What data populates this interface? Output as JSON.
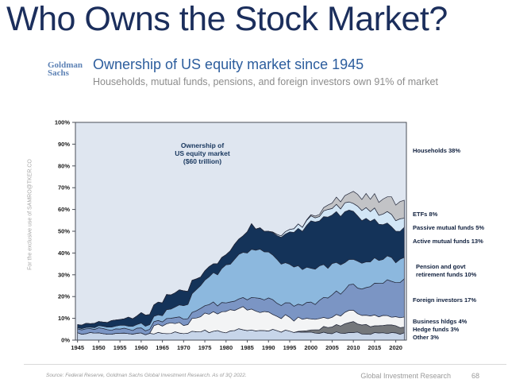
{
  "slide": {
    "title": "Who Owns the Stock Market?",
    "watermark": "For the exclusive use of SAMRO@TKER.CO",
    "footer": {
      "source": "Source: Federal Reserve, Goldman Sachs Global Investment Research. As of 3Q 2022.",
      "department": "Global Investment Research",
      "page": "68"
    }
  },
  "header": {
    "logo_line1": "Goldman",
    "logo_line2": "Sachs",
    "heading": "Ownership of US equity market since 1945",
    "subheading": "Households, mutual funds, pensions, and foreign investors own 91% of market"
  },
  "chart_data": {
    "type": "area",
    "stacked": true,
    "title": "Ownership of\nUS equity market\n($60 trillion)",
    "xlabel": "",
    "ylabel": "",
    "x_range": [
      1944.5,
      2022.5
    ],
    "ylim": [
      0,
      100
    ],
    "grid": false,
    "legend_position": "right",
    "x_ticks": [
      1945,
      1950,
      1955,
      1960,
      1965,
      1970,
      1975,
      1980,
      1985,
      1990,
      1995,
      2000,
      2005,
      2010,
      2015,
      2020
    ],
    "y_ticks": [
      "0%",
      "10%",
      "20%",
      "30%",
      "40%",
      "50%",
      "60%",
      "70%",
      "80%",
      "90%",
      "100%"
    ],
    "line_color": "#23283a",
    "plot_border_color": "#4a4e57",
    "background_series": {
      "name": "Households",
      "color": "#dfe6f0",
      "current_share": "38%"
    },
    "years": [
      1945,
      1950,
      1955,
      1960,
      1962,
      1963,
      1965,
      1968,
      1970,
      1972,
      1974,
      1976,
      1978,
      1980,
      1982,
      1984,
      1986,
      1988,
      1990,
      1992,
      1994,
      1996,
      1998,
      2000,
      2002,
      2004,
      2006,
      2008,
      2010,
      2012,
      2014,
      2016,
      2018,
      2020,
      2022
    ],
    "series": [
      {
        "name": "Other",
        "color": "#c7d5e9",
        "values": [
          3,
          3,
          3,
          3,
          3,
          3,
          3,
          3.5,
          3.5,
          3.5,
          4,
          4,
          4,
          4,
          4.5,
          5,
          5,
          4.5,
          4.5,
          4,
          4,
          3.5,
          3.5,
          3.5,
          3.5,
          3.5,
          3.5,
          3.5,
          3.5,
          3,
          3,
          3,
          3,
          3,
          3
        ]
      },
      {
        "name": "Hedge funds",
        "color": "#74777b",
        "values": [
          0,
          0,
          0,
          0,
          0,
          0,
          0,
          0,
          0,
          0,
          0,
          0,
          0,
          0,
          0,
          0,
          0,
          0,
          0,
          0,
          0,
          0,
          0.5,
          1,
          2,
          3,
          3.5,
          4.5,
          4.5,
          4,
          4,
          3.5,
          3.5,
          3,
          3
        ]
      },
      {
        "name": "Business hldgs",
        "color": "#f3f4f5",
        "values": [
          0,
          0,
          0,
          0,
          0,
          4,
          4,
          4.5,
          4.5,
          5,
          7,
          8,
          8.5,
          9,
          9.5,
          10,
          9.5,
          9,
          8,
          7,
          6.5,
          6,
          5.5,
          5,
          5,
          5,
          5,
          5,
          5,
          4.5,
          4.5,
          4,
          4,
          4,
          4
        ]
      },
      {
        "name": "Foreign investors",
        "color": "#7b95c4",
        "values": [
          2,
          2,
          2,
          2,
          2,
          2,
          2,
          2.5,
          3,
          3,
          4,
          4,
          4,
          4,
          4.5,
          5,
          5.5,
          6,
          6,
          6,
          6,
          6.5,
          7,
          7,
          8,
          9,
          10,
          11,
          12,
          13,
          14,
          15,
          16,
          16,
          17
        ]
      },
      {
        "name": "Pension and govt retirement funds",
        "color": "#8cb8de",
        "values": [
          0.5,
          1,
          1.5,
          2,
          2.5,
          2.5,
          3,
          4.5,
          6,
          8,
          11,
          12,
          14,
          17,
          19,
          21,
          23,
          22,
          21,
          20,
          19,
          18,
          17,
          16,
          15,
          14,
          13,
          13,
          12,
          11.5,
          11,
          11,
          10.5,
          10,
          10
        ]
      },
      {
        "name": "Active mutual funds",
        "color": "#143359",
        "values": [
          1.5,
          2,
          3,
          4.5,
          5,
          5,
          6,
          7,
          6,
          5.5,
          4,
          4.5,
          4.5,
          5,
          6,
          8,
          11,
          10,
          10,
          11,
          13,
          15,
          18,
          22,
          21,
          23,
          23,
          23,
          22,
          20,
          19,
          17,
          15,
          14,
          13
        ]
      },
      {
        "name": "Passive mutual funds",
        "color": "#d2e6f6",
        "values": [
          0,
          0,
          0,
          0,
          0,
          0,
          0,
          0,
          0,
          0,
          0,
          0,
          0,
          0,
          0,
          0,
          0,
          0,
          0,
          0.5,
          1,
          1.5,
          2,
          2,
          2.5,
          3,
          3,
          3.5,
          4,
          4,
          4.5,
          5,
          5,
          5,
          5
        ]
      },
      {
        "name": "ETFs",
        "color": "#c2c3c6",
        "values": [
          0,
          0,
          0,
          0,
          0,
          0,
          0,
          0,
          0,
          0,
          0,
          0,
          0,
          0,
          0,
          0,
          0,
          0,
          0,
          0,
          0,
          0,
          0,
          0.5,
          1,
          2,
          3,
          4,
          5,
          5.5,
          6,
          6.5,
          7,
          7.5,
          8
        ]
      }
    ],
    "right_labels": [
      "Households 38%",
      "ETFs 8%",
      "Passive mutual funds 5%",
      "Active mutual funds 13%",
      "Pension and govt\nretirement funds 10%",
      "Foreign investors 17%",
      "Business hldgs 4%",
      "Hedge funds 3%",
      "Other 3%"
    ]
  }
}
